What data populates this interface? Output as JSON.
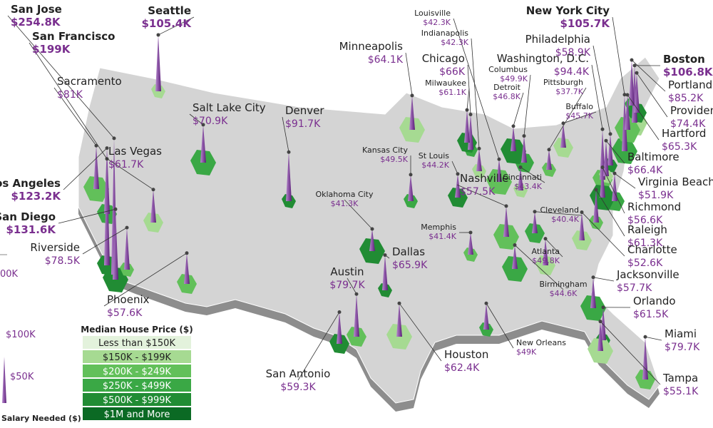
{
  "cities": [
    {
      "name": "San Jose",
      "salary": 254.8,
      "salary_label": "$254.8K"
    },
    {
      "name": "San Francisco",
      "salary": 199,
      "salary_label": "$199K"
    },
    {
      "name": "Sacramento",
      "salary": 81,
      "salary_label": "$81K"
    },
    {
      "name": "Seattle",
      "salary": 105.4,
      "salary_label": "$105.4K"
    },
    {
      "name": "Los Angeles",
      "salary": 123.2,
      "salary_label": "$123.2K"
    },
    {
      "name": "San Diego",
      "salary": 131.6,
      "salary_label": "$131.6K"
    },
    {
      "name": "Riverside",
      "salary": 78.5,
      "salary_label": "$78.5K"
    },
    {
      "name": "Las Vegas",
      "salary": 61.7,
      "salary_label": "$61.7K"
    },
    {
      "name": "Salt Lake City",
      "salary": 70.9,
      "salary_label": "$70.9K"
    },
    {
      "name": "Denver",
      "salary": 91.7,
      "salary_label": "$91.7K"
    },
    {
      "name": "Phoenix",
      "salary": 57.6,
      "salary_label": "$57.6K"
    },
    {
      "name": "Minneapolis",
      "salary": 64.1,
      "salary_label": "$64.1K"
    },
    {
      "name": "Chicago",
      "salary": 66,
      "salary_label": "$66K"
    },
    {
      "name": "Milwaukee",
      "salary": 61.1,
      "salary_label": "$61.1K"
    },
    {
      "name": "Louisville",
      "salary": 42.3,
      "salary_label": "$42.3K"
    },
    {
      "name": "Indianapolis",
      "salary": 42.3,
      "salary_label": "$42.3K"
    },
    {
      "name": "Columbus",
      "salary": 49.9,
      "salary_label": "$49.9K"
    },
    {
      "name": "Detroit",
      "salary": 46.8,
      "salary_label": "$46.8K"
    },
    {
      "name": "Pittsburgh",
      "salary": 37.7,
      "salary_label": "$37.7K"
    },
    {
      "name": "Buffalo",
      "salary": 45.7,
      "salary_label": "$45.7K"
    },
    {
      "name": "New York City",
      "salary": 105.7,
      "salary_label": "$105.7K"
    },
    {
      "name": "Philadelphia",
      "salary": 58.9,
      "salary_label": "$58.9K"
    },
    {
      "name": "Washington, D.C.",
      "salary": 94.4,
      "salary_label": "$94.4K"
    },
    {
      "name": "Boston",
      "salary": 106.8,
      "salary_label": "$106.8K"
    },
    {
      "name": "Portland",
      "salary": 85.2,
      "salary_label": "$85.2K"
    },
    {
      "name": "Providence",
      "salary": 74.4,
      "salary_label": "$74.4K"
    },
    {
      "name": "Hartford",
      "salary": 65.3,
      "salary_label": "$65.3K"
    },
    {
      "name": "Baltimore",
      "salary": 66.4,
      "salary_label": "$66.4K"
    },
    {
      "name": "Virginia Beach",
      "salary": 51.9,
      "salary_label": "$51.9K"
    },
    {
      "name": "Richmond",
      "salary": 56.6,
      "salary_label": "$56.6K"
    },
    {
      "name": "Raleigh",
      "salary": 61.3,
      "salary_label": "$61.3K"
    },
    {
      "name": "Charlotte",
      "salary": 52.6,
      "salary_label": "$52.6K"
    },
    {
      "name": "Jacksonville",
      "salary": 57.7,
      "salary_label": "$57.7K"
    },
    {
      "name": "Orlando",
      "salary": 61.5,
      "salary_label": "$61.5K"
    },
    {
      "name": "Miami",
      "salary": 79.7,
      "salary_label": "$79.7K"
    },
    {
      "name": "Tampa",
      "salary": 55.1,
      "salary_label": "$55.1K"
    },
    {
      "name": "Kansas City",
      "salary": 49.5,
      "salary_label": "$49.5K"
    },
    {
      "name": "St Louis",
      "salary": 44.2,
      "salary_label": "$44.2K"
    },
    {
      "name": "Nashville",
      "salary": 57.5,
      "salary_label": "$57.5K"
    },
    {
      "name": "Cincinnati",
      "salary": 43.4,
      "salary_label": "$43.4K"
    },
    {
      "name": "Cleveland",
      "salary": 40.4,
      "salary_label": "$40.4K"
    },
    {
      "name": "Oklahoma City",
      "salary": 41.3,
      "salary_label": "$41.3K"
    },
    {
      "name": "Memphis",
      "salary": 41.4,
      "salary_label": "$41.4K"
    },
    {
      "name": "Atlanta",
      "salary": 49.8,
      "salary_label": "$49.8K"
    },
    {
      "name": "Birmingham",
      "salary": 44.6,
      "salary_label": "$44.6K"
    },
    {
      "name": "Dallas",
      "salary": 65.9,
      "salary_label": "$65.9K"
    },
    {
      "name": "Austin",
      "salary": 79.7,
      "salary_label": "$79.7K"
    },
    {
      "name": "Houston",
      "salary": 62.4,
      "salary_label": "$62.4K"
    },
    {
      "name": "New Orleans",
      "salary": 49,
      "salary_label": "$49K"
    },
    {
      "name": "San Antonio",
      "salary": 59.3,
      "salary_label": "$59.3K"
    }
  ],
  "legend": {
    "title": "Median House Price ($)",
    "items": [
      {
        "label": "Less than $150K",
        "color": "#e3f2dc"
      },
      {
        "label": "$150K - $199K",
        "color": "#a6da92"
      },
      {
        "label": "$200K - $249K",
        "color": "#62c05a"
      },
      {
        "label": "$250K - $499K",
        "color": "#3aa845"
      },
      {
        "label": "$500K - $999K",
        "color": "#218c34"
      },
      {
        "label": "$1M and More",
        "color": "#0b6a24"
      }
    ]
  },
  "scale": {
    "labels": [
      "00K",
      "$100K",
      "$50K"
    ],
    "title": "Salary Needed ($)"
  }
}
